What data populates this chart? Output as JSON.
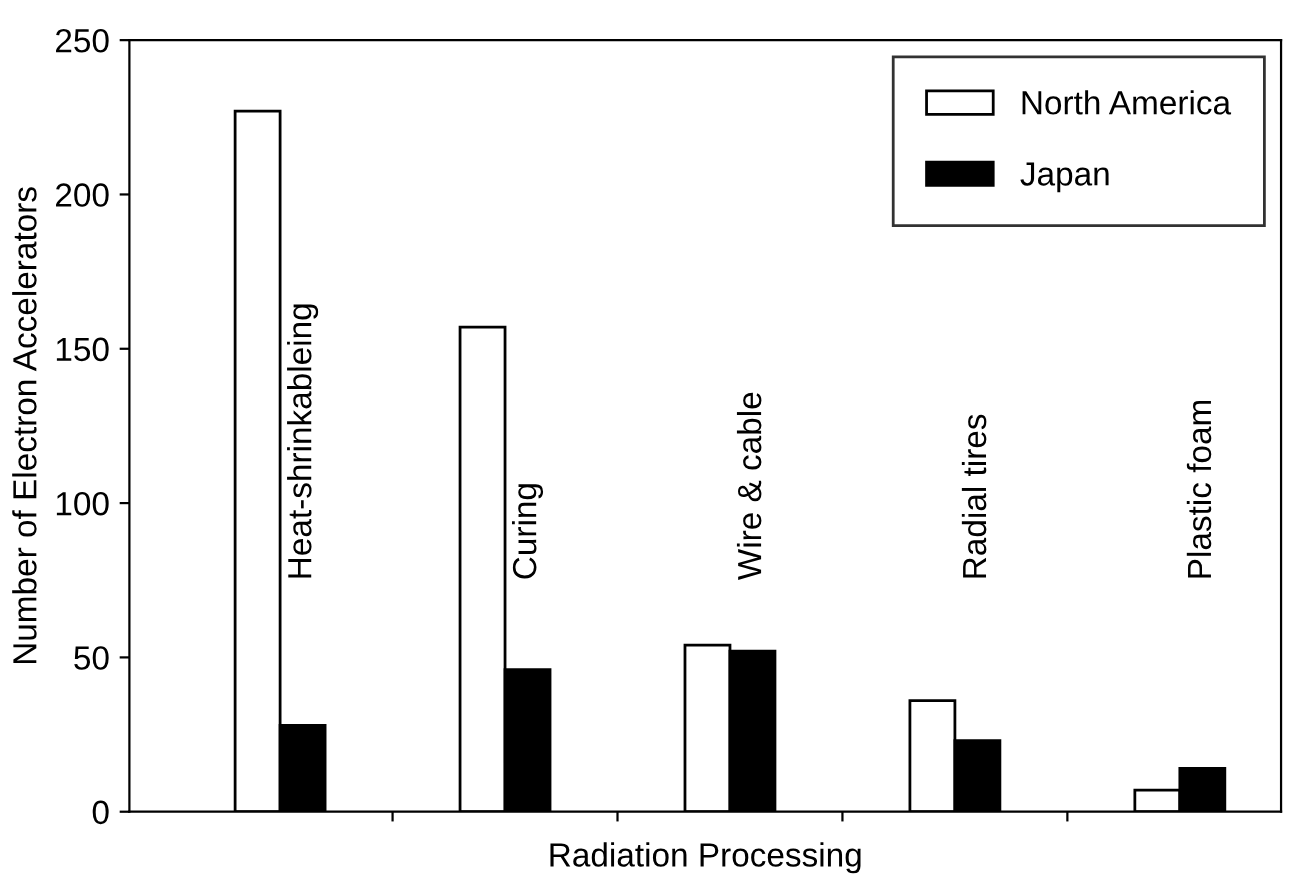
{
  "chart_data": {
    "type": "bar",
    "xlabel": "Radiation Processing",
    "ylabel": "Number of Electron Accelerators",
    "categories": [
      "Heat-shrinkableing",
      "Curing",
      "Wire & cable",
      "Radial tires",
      "Plastic foam"
    ],
    "series": [
      {
        "name": "North America",
        "color": "#ffffff",
        "values": [
          227,
          157,
          54,
          36,
          7
        ]
      },
      {
        "name": "Japan",
        "color": "#000000",
        "values": [
          28,
          46,
          52,
          23,
          14
        ]
      }
    ],
    "ylim": [
      0,
      250
    ],
    "yticks": [
      0,
      50,
      100,
      150,
      200,
      250
    ],
    "legend": "top right",
    "grid": false
  }
}
